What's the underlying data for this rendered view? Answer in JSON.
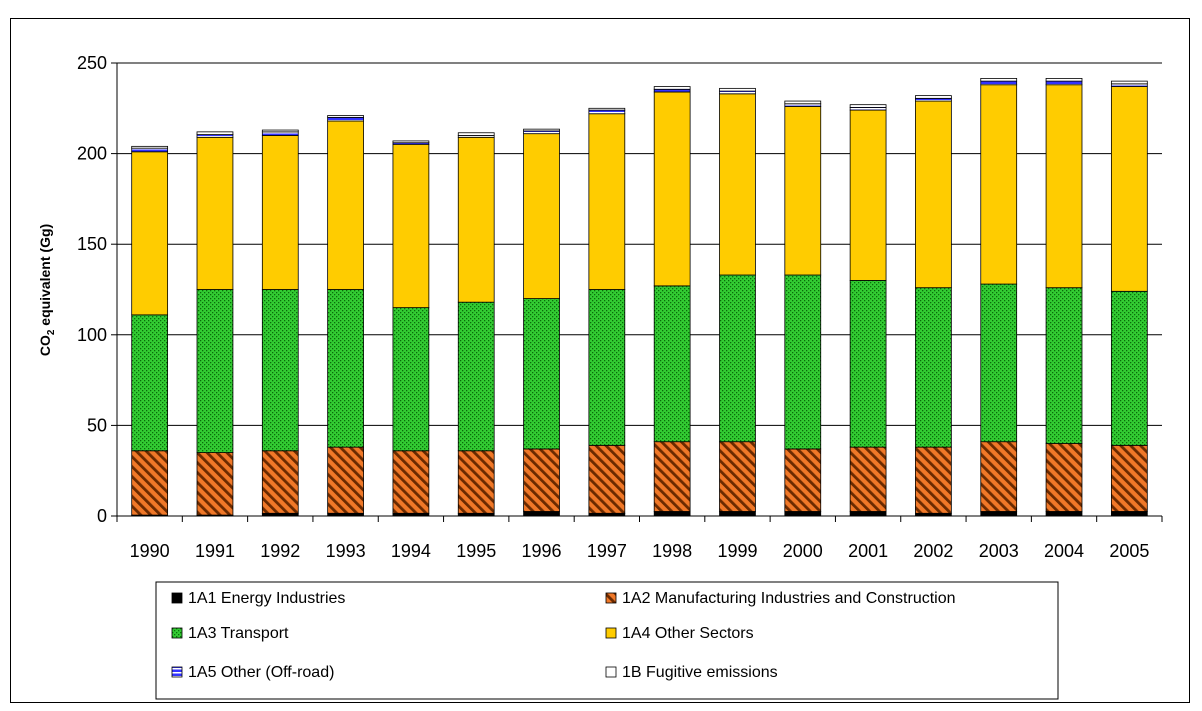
{
  "chart_data": {
    "type": "bar",
    "stacked": true,
    "title": "",
    "xlabel": "",
    "ylabel": "CO",
    "ylabel_sub": "2",
    "ylabel_suffix": " equivalent (Gg)",
    "ylim": [
      0,
      250
    ],
    "yticks": [
      0,
      50,
      100,
      150,
      200,
      250
    ],
    "grid": true,
    "legend": "bottom",
    "categories": [
      "1990",
      "1991",
      "1992",
      "1993",
      "1994",
      "1995",
      "1996",
      "1997",
      "1998",
      "1999",
      "2000",
      "2001",
      "2002",
      "2003",
      "2004",
      "2005"
    ],
    "series": [
      {
        "name": "1A1 Energy Industries",
        "color": "#000000",
        "pattern": "solid",
        "values": [
          0.5,
          0.5,
          1.5,
          1.5,
          1.5,
          1.5,
          2.5,
          1.5,
          2.5,
          2.5,
          2.5,
          2.5,
          1.5,
          2.5,
          2.5,
          2.5
        ]
      },
      {
        "name": "1A2 Manufacturing Industries and Construction",
        "color": "#f07828",
        "pattern": "diagonal",
        "values": [
          35.5,
          34.5,
          34.5,
          36.5,
          34.5,
          34.5,
          34.5,
          37.5,
          38.5,
          38.5,
          34.5,
          35.5,
          36.5,
          38.5,
          37.5,
          36.5
        ]
      },
      {
        "name": "1A3 Transport",
        "color": "#33cc33",
        "pattern": "dotted",
        "values": [
          75,
          90,
          89,
          87,
          79,
          82,
          83,
          86,
          86,
          92,
          96,
          92,
          88,
          87,
          86,
          85
        ]
      },
      {
        "name": "1A4 Other Sectors",
        "color": "#ffcc00",
        "pattern": "solid",
        "values": [
          90,
          84,
          85,
          93,
          90,
          91,
          91,
          97,
          107,
          100,
          93,
          94,
          103,
          110,
          112,
          113
        ]
      },
      {
        "name": "1A5 Other (Off-road)",
        "color": "#3333ff",
        "pattern": "hbar",
        "values": [
          2,
          1.5,
          2,
          2,
          1,
          1,
          1.5,
          2,
          1.5,
          1.5,
          1.5,
          1.5,
          1.5,
          2,
          2,
          1.5
        ]
      },
      {
        "name": "1B Fugitive emissions",
        "color": "#ffffff",
        "pattern": "solid",
        "values": [
          1,
          1.5,
          1,
          1,
          1,
          1.5,
          1,
          1,
          1.5,
          1.5,
          1.5,
          1.5,
          1.5,
          1.5,
          1.5,
          1.5
        ]
      }
    ]
  }
}
